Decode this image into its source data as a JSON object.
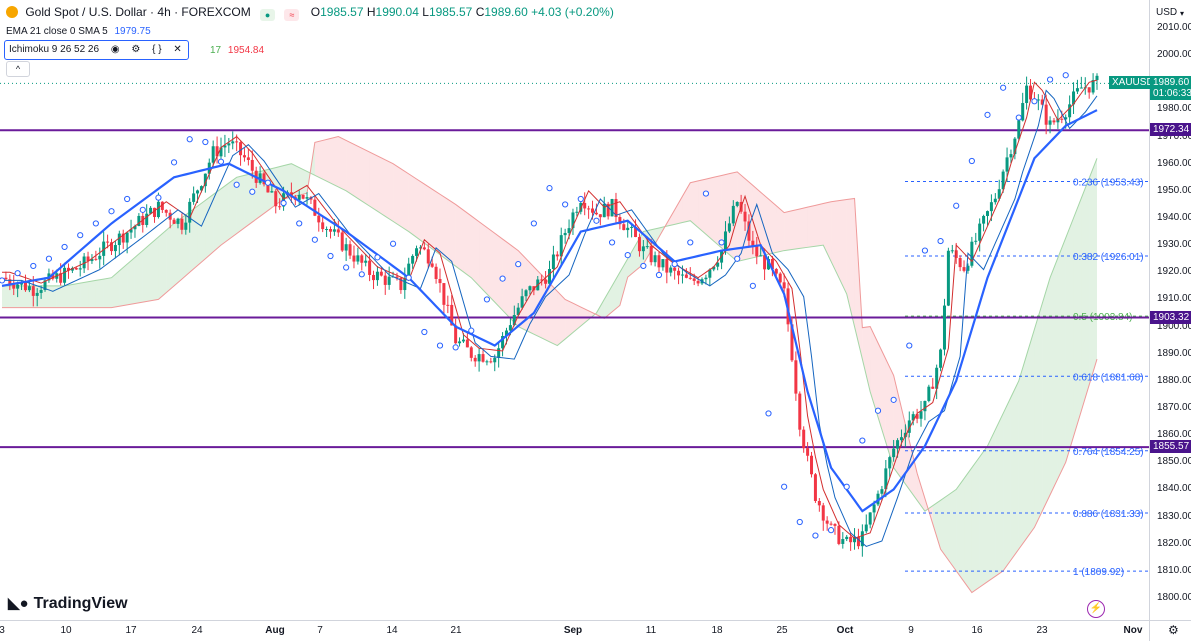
{
  "header": {
    "title": "Gold Spot / U.S. Dollar · 4h · FOREXCOM",
    "ohlc": {
      "o_label": "O",
      "o": "1985.57",
      "h_label": "H",
      "h": "1990.04",
      "l_label": "L",
      "l": "1985.57",
      "c_label": "C",
      "c": "1989.60",
      "change": "+4.03 (+0.20%)"
    },
    "status_icons": [
      "market-open-icon",
      "wave-icon"
    ]
  },
  "indicators": {
    "ema_label": "EMA 21 close 0 SMA 5",
    "ema_value": "1979.75",
    "ichimoku_label": "Ichimoku 9 26 52 26",
    "ichimoku_value_1": "17",
    "ichimoku_value_2": "1954.84",
    "controls": [
      "eye-icon",
      "settings-icon",
      "source-code-icon",
      "close-icon"
    ],
    "collapse_glyph": "^"
  },
  "right_axis": {
    "currency": "USD",
    "ticks": [
      "2010.00",
      "2000.00",
      "1990.00",
      "1980.00",
      "1970.00",
      "1960.00",
      "1950.00",
      "1940.00",
      "1930.00",
      "1920.00",
      "1910.00",
      "1900.00",
      "1890.00",
      "1880.00",
      "1870.00",
      "1860.00",
      "1850.00",
      "1840.00",
      "1830.00",
      "1820.00",
      "1810.00",
      "1800.00"
    ],
    "last_price": "1989.60",
    "countdown": "01:06:33",
    "symbol_tag": "XAUUSD",
    "level_tags": [
      "1972.34",
      "1903.32",
      "1855.57"
    ]
  },
  "time_axis": {
    "ticks": [
      {
        "label": "3",
        "bold": false
      },
      {
        "label": "10",
        "bold": false
      },
      {
        "label": "17",
        "bold": false
      },
      {
        "label": "24",
        "bold": false
      },
      {
        "label": "Aug",
        "bold": true
      },
      {
        "label": "7",
        "bold": false
      },
      {
        "label": "14",
        "bold": false
      },
      {
        "label": "21",
        "bold": false
      },
      {
        "label": "Sep",
        "bold": true
      },
      {
        "label": "11",
        "bold": false
      },
      {
        "label": "18",
        "bold": false
      },
      {
        "label": "25",
        "bold": false
      },
      {
        "label": "Oct",
        "bold": true
      },
      {
        "label": "9",
        "bold": false
      },
      {
        "label": "16",
        "bold": false
      },
      {
        "label": "23",
        "bold": false
      },
      {
        "label": "Nov",
        "bold": true
      }
    ]
  },
  "fibonacci": [
    {
      "label": "0.236 (1953.43)",
      "price": 1953.43,
      "color": "#2962ff"
    },
    {
      "label": "0.382 (1926.01)",
      "price": 1926.01,
      "color": "#2962ff"
    },
    {
      "label": "0.5 (1903.84)",
      "price": 1903.84,
      "color": "#4caf50"
    },
    {
      "label": "0.618 (1881.68)",
      "price": 1881.68,
      "color": "#2962ff"
    },
    {
      "label": "0.764 (1854.25)",
      "price": 1854.25,
      "color": "#2962ff"
    },
    {
      "label": "0.886 (1831.33)",
      "price": 1831.33,
      "color": "#2962ff"
    },
    {
      "label": "1 (1809.92)",
      "price": 1809.92,
      "color": "#2962ff"
    }
  ],
  "horizontal_levels": [
    1972.34,
    1903.32,
    1855.57
  ],
  "colors": {
    "up": "#089981",
    "down": "#f23645",
    "level": "#6a1b9a",
    "ema": "#2962ff",
    "fib": "#2962ff"
  },
  "branding": {
    "name": "TradingView"
  },
  "chart_data": {
    "type": "candlestick",
    "timeframe": "4h",
    "symbol": "XAUUSD",
    "ylim": [
      1800,
      2010
    ],
    "price_path": [
      [
        0,
        1918
      ],
      [
        4,
        1914
      ],
      [
        10,
        1922
      ],
      [
        16,
        1935
      ],
      [
        20,
        1944
      ],
      [
        23,
        1938
      ],
      [
        27,
        1964
      ],
      [
        29,
        1968
      ],
      [
        31,
        1962
      ],
      [
        35,
        1945
      ],
      [
        38,
        1950
      ],
      [
        42,
        1935
      ],
      [
        47,
        1920
      ],
      [
        51,
        1915
      ],
      [
        53,
        1930
      ],
      [
        55,
        1925
      ],
      [
        57,
        1905
      ],
      [
        58,
        1895
      ],
      [
        60,
        1890
      ],
      [
        63,
        1889
      ],
      [
        65,
        1902
      ],
      [
        67,
        1912
      ],
      [
        70,
        1920
      ],
      [
        72,
        1935
      ],
      [
        74,
        1948
      ],
      [
        76,
        1942
      ],
      [
        78,
        1944
      ],
      [
        80,
        1936
      ],
      [
        82,
        1928
      ],
      [
        85,
        1921
      ],
      [
        88,
        1916
      ],
      [
        90,
        1920
      ],
      [
        92,
        1928
      ],
      [
        93,
        1938
      ],
      [
        94,
        1946
      ],
      [
        96,
        1928
      ],
      [
        98,
        1922
      ],
      [
        100,
        1912
      ],
      [
        101,
        1890
      ],
      [
        102,
        1865
      ],
      [
        103,
        1850
      ],
      [
        104,
        1838
      ],
      [
        106,
        1825
      ],
      [
        108,
        1820
      ],
      [
        110,
        1822
      ],
      [
        112,
        1838
      ],
      [
        114,
        1855
      ],
      [
        116,
        1866
      ],
      [
        118,
        1870
      ],
      [
        120,
        1890
      ],
      [
        121,
        1928
      ],
      [
        123,
        1922
      ],
      [
        125,
        1935
      ],
      [
        127,
        1948
      ],
      [
        128,
        1958
      ],
      [
        130,
        1975
      ],
      [
        131,
        1988
      ],
      [
        132,
        1985
      ],
      [
        134,
        1974
      ],
      [
        136,
        1980
      ],
      [
        138,
        1988
      ],
      [
        140,
        1989.6
      ]
    ],
    "ema_path": [
      [
        0,
        1915
      ],
      [
        6,
        1918
      ],
      [
        14,
        1938
      ],
      [
        22,
        1955
      ],
      [
        29,
        1960
      ],
      [
        36,
        1950
      ],
      [
        44,
        1935
      ],
      [
        52,
        1918
      ],
      [
        58,
        1900
      ],
      [
        63,
        1893
      ],
      [
        68,
        1905
      ],
      [
        74,
        1935
      ],
      [
        80,
        1939
      ],
      [
        86,
        1924
      ],
      [
        92,
        1928
      ],
      [
        97,
        1930
      ],
      [
        100,
        1912
      ],
      [
        103,
        1876
      ],
      [
        106,
        1848
      ],
      [
        110,
        1832
      ],
      [
        114,
        1840
      ],
      [
        118,
        1856
      ],
      [
        122,
        1880
      ],
      [
        126,
        1918
      ],
      [
        129,
        1940
      ],
      [
        132,
        1962
      ],
      [
        136,
        1974
      ],
      [
        140,
        1979.75
      ]
    ]
  }
}
